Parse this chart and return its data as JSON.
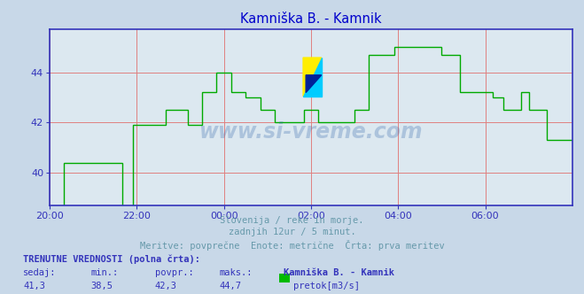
{
  "title": "Kamniška B. - Kamnik",
  "title_color": "#0000cc",
  "bg_color": "#c8d8e8",
  "plot_bg_color": "#dce8f0",
  "grid_color": "#e08080",
  "line_color": "#00aa00",
  "axis_color": "#3333bb",
  "x_tick_labels": [
    "20:00",
    "22:00",
    "00:00",
    "02:00",
    "04:00",
    "06:00"
  ],
  "x_tick_positions": [
    0,
    24,
    48,
    72,
    96,
    120
  ],
  "y_ticks": [
    40,
    42,
    44
  ],
  "ylim": [
    38.7,
    45.7
  ],
  "xlim": [
    0,
    144
  ],
  "subtitle_line1": "Slovenija / reke in morje.",
  "subtitle_line2": "zadnjih 12ur / 5 minut.",
  "subtitle_line3": "Meritve: povprečne  Enote: metrične  Črta: prva meritev",
  "subtitle_color": "#6699aa",
  "bottom_label_bold": "TRENUTNE VREDNOSTI (polna črta):",
  "bottom_cols": [
    "sedaj:",
    "min.:",
    "povpr.:",
    "maks.:",
    "Kamniška B. - Kamnik"
  ],
  "bottom_vals": [
    "41,3",
    "38,5",
    "42,3",
    "44,7"
  ],
  "legend_label": "pretok[m3/s]",
  "legend_color": "#00bb00",
  "watermark": "www.si-vreme.com",
  "watermark_color": "#3366aa",
  "watermark_alpha": 0.28,
  "logo_colors": [
    "#ffee00",
    "#00ccff",
    "#0033cc"
  ],
  "flow_x": [
    0,
    4,
    4,
    20,
    20,
    23,
    23,
    32,
    32,
    38,
    38,
    42,
    42,
    46,
    46,
    50,
    50,
    54,
    54,
    58,
    58,
    62,
    62,
    65,
    65,
    70,
    70,
    74,
    74,
    76,
    76,
    84,
    84,
    88,
    88,
    95,
    95,
    108,
    108,
    113,
    113,
    118,
    118,
    122,
    122,
    125,
    125,
    130,
    130,
    132,
    132,
    137,
    137,
    144
  ],
  "flow_y": [
    38.5,
    38.5,
    40.4,
    40.4,
    38.5,
    38.5,
    41.9,
    41.9,
    42.5,
    42.5,
    41.9,
    41.9,
    43.2,
    43.2,
    44.0,
    44.0,
    43.2,
    43.2,
    43.0,
    43.0,
    42.5,
    42.5,
    42.0,
    42.0,
    42.0,
    42.0,
    42.5,
    42.5,
    42.0,
    42.0,
    42.0,
    42.0,
    42.5,
    42.5,
    44.7,
    44.7,
    45.0,
    45.0,
    44.7,
    44.7,
    43.2,
    43.2,
    43.2,
    43.2,
    43.0,
    43.0,
    42.5,
    42.5,
    43.2,
    43.2,
    42.5,
    42.5,
    41.3,
    41.3
  ]
}
